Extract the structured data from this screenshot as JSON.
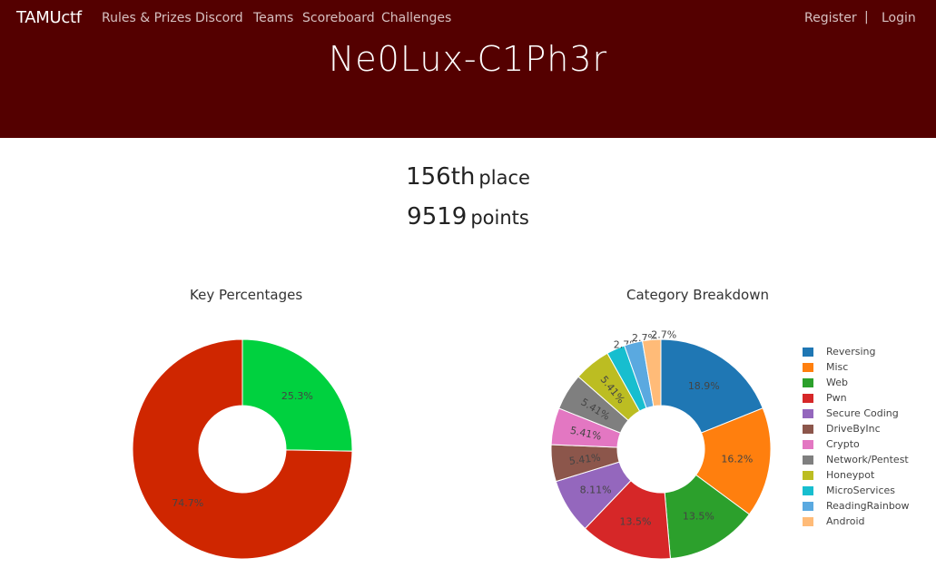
{
  "nav": {
    "brand": "TAMUctf",
    "links": [
      "Rules & Prizes",
      "Discord",
      "Teams",
      "Scoreboard",
      "Challenges"
    ],
    "register": "Register",
    "separator": "|",
    "login": "Login"
  },
  "team": {
    "name": "Ne0Lux-C1Ph3r"
  },
  "stats": {
    "place_value": "156th",
    "place_label": "place",
    "points_value": "9519",
    "points_label": "points"
  },
  "colors": {
    "header_bg": "#540000",
    "solved": "#d12f00",
    "fails": "#00d13f"
  },
  "chart_data": [
    {
      "type": "pie",
      "title": "Key Percentages",
      "slices": [
        {
          "label": "25.3%",
          "value": 25.3,
          "color": "#00d13f"
        },
        {
          "label": "74.7%",
          "value": 74.7,
          "color": "#cf2600"
        }
      ]
    },
    {
      "type": "pie",
      "title": "Category Breakdown",
      "slices": [
        {
          "name": "Reversing",
          "label": "18.9%",
          "value": 18.9,
          "color": "#1f77b4"
        },
        {
          "name": "Misc",
          "label": "16.2%",
          "value": 16.2,
          "color": "#ff7f0e"
        },
        {
          "name": "Web",
          "label": "13.5%",
          "value": 13.5,
          "color": "#2ca02c"
        },
        {
          "name": "Pwn",
          "label": "13.5%",
          "value": 13.5,
          "color": "#d62728"
        },
        {
          "name": "Secure Coding",
          "label": "8.11%",
          "value": 8.11,
          "color": "#9467bd"
        },
        {
          "name": "DriveByInc",
          "label": "5.41%",
          "value": 5.41,
          "color": "#8c564b"
        },
        {
          "name": "Crypto",
          "label": "5.41%",
          "value": 5.41,
          "color": "#e377c2"
        },
        {
          "name": "Network/Pentest",
          "label": "5.41%",
          "value": 5.41,
          "color": "#7f7f7f"
        },
        {
          "name": "Honeypot",
          "label": "5.41%",
          "value": 5.41,
          "color": "#bcbd22"
        },
        {
          "name": "MicroServices",
          "label": "2.7%",
          "value": 2.7,
          "color": "#17becf"
        },
        {
          "name": "ReadingRainbow",
          "label": "2.7%",
          "value": 2.7,
          "color": "#5aa9e0"
        },
        {
          "name": "Android",
          "label": "2.7%",
          "value": 2.7,
          "color": "#ffbb78"
        }
      ]
    }
  ]
}
